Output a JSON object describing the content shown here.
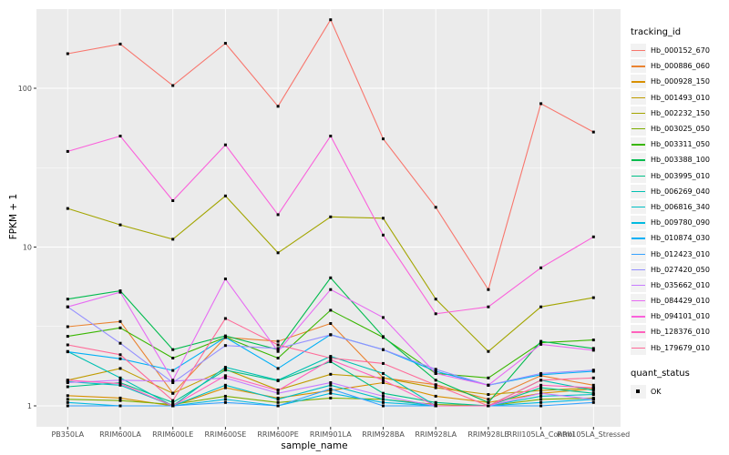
{
  "chart_data": {
    "type": "line",
    "title": "",
    "xlabel": "sample_name",
    "ylabel": "FPKM + 1",
    "y_scale": "log10",
    "y_ticks": [
      1,
      10,
      100
    ],
    "y_minor_ticks": [
      3.162,
      31.62,
      316.2
    ],
    "ylim_log": [
      0.87,
      316
    ],
    "grid": "on",
    "panel_bg": "#ebebeb",
    "grid_color": "#ffffff",
    "tick_text_color": "#4d4d4d",
    "point_color": "#000000",
    "legend_position": "right",
    "legend_title": "tracking_id",
    "quant_legend_title": "quant_status",
    "quant_legend_value": "OK",
    "categories": [
      "PB350LA",
      "RRIM600LA",
      "RRIM600LE",
      "RRIM600SE",
      "RRIM600PE",
      "RRIM901LA",
      "RRIM928BA",
      "RRIM928LA",
      "RRIM928LE",
      "RRII105LA_Control",
      "RRII105LA_Stressed"
    ],
    "series": [
      {
        "name": "Hb_000152_670",
        "color": "#F8766D",
        "values": [
          165,
          190,
          104,
          192,
          77,
          270,
          48,
          17.8,
          5.4,
          80,
          53
        ]
      },
      {
        "name": "Hb_000886_060",
        "color": "#EA8331",
        "values": [
          3.15,
          3.4,
          1.2,
          2.7,
          2.55,
          3.3,
          1.5,
          1.36,
          1.1,
          1.55,
          1.35
        ]
      },
      {
        "name": "Hb_000928_150",
        "color": "#D89000",
        "values": [
          1.16,
          1.12,
          1.0,
          1.3,
          1.12,
          1.25,
          1.4,
          1.15,
          1.05,
          1.2,
          1.28
        ]
      },
      {
        "name": "Hb_001493_010",
        "color": "#C09B00",
        "values": [
          1.45,
          1.72,
          1.2,
          1.7,
          1.26,
          1.58,
          1.5,
          1.3,
          1.18,
          1.25,
          1.3
        ]
      },
      {
        "name": "Hb_002232_150",
        "color": "#A3A500",
        "values": [
          17.5,
          13.8,
          11.2,
          21,
          9.2,
          15.5,
          15.2,
          4.7,
          2.2,
          4.2,
          4.8
        ]
      },
      {
        "name": "Hb_003025_050",
        "color": "#7CAE00",
        "values": [
          1.1,
          1.08,
          1.02,
          1.15,
          1.05,
          1.12,
          1.1,
          1.02,
          1.0,
          1.1,
          1.12
        ]
      },
      {
        "name": "Hb_003311_050",
        "color": "#39B600",
        "values": [
          2.74,
          3.1,
          2.0,
          2.7,
          2.0,
          4.0,
          2.7,
          1.6,
          1.5,
          2.5,
          2.6
        ]
      },
      {
        "name": "Hb_003388_100",
        "color": "#00BB4E",
        "values": [
          4.7,
          5.3,
          2.26,
          2.76,
          2.26,
          6.4,
          2.73,
          1.45,
          1.05,
          2.55,
          2.3
        ]
      },
      {
        "name": "Hb_003995_010",
        "color": "#00C087",
        "values": [
          1.32,
          1.4,
          1.05,
          1.68,
          1.44,
          1.9,
          1.2,
          1.05,
          1.0,
          1.3,
          1.2
        ]
      },
      {
        "name": "Hb_006269_040",
        "color": "#00C0B2",
        "values": [
          2.2,
          1.5,
          1.0,
          1.75,
          1.45,
          2.05,
          1.6,
          1.0,
          1.0,
          1.45,
          1.25
        ]
      },
      {
        "name": "Hb_006816_340",
        "color": "#00BFC4",
        "values": [
          1.42,
          1.35,
          1.0,
          1.35,
          1.1,
          1.35,
          1.1,
          1.0,
          1.0,
          1.15,
          1.18
        ]
      },
      {
        "name": "Hb_009780_090",
        "color": "#00BAE0",
        "values": [
          1.05,
          1.0,
          1.0,
          1.1,
          1.0,
          1.2,
          1.05,
          1.0,
          1.0,
          1.05,
          1.1
        ]
      },
      {
        "name": "Hb_010874_030",
        "color": "#00B0F6",
        "values": [
          2.19,
          1.98,
          1.67,
          2.7,
          1.72,
          2.81,
          2.26,
          1.65,
          1.35,
          1.57,
          1.65
        ]
      },
      {
        "name": "Hb_012423_010",
        "color": "#35A2FF",
        "values": [
          1.0,
          1.0,
          1.0,
          1.05,
          1.0,
          1.28,
          1.0,
          1.0,
          1.0,
          1.0,
          1.05
        ]
      },
      {
        "name": "Hb_027420_050",
        "color": "#9590FF",
        "values": [
          4.2,
          2.48,
          1.4,
          2.4,
          2.3,
          2.8,
          2.26,
          1.7,
          1.35,
          1.6,
          1.68
        ]
      },
      {
        "name": "Hb_035662_010",
        "color": "#C77CFF",
        "values": [
          1.4,
          1.45,
          1.43,
          1.5,
          1.2,
          1.4,
          1.15,
          1.0,
          1.0,
          1.2,
          1.1
        ]
      },
      {
        "name": "Hb_084429_010",
        "color": "#E76BF3",
        "values": [
          4.2,
          5.2,
          1.45,
          6.3,
          2.2,
          5.4,
          3.6,
          1.6,
          1.35,
          2.44,
          2.24
        ]
      },
      {
        "name": "Hb_094101_010",
        "color": "#FA62DB",
        "values": [
          40,
          50,
          19.6,
          44,
          16,
          50,
          11.9,
          3.8,
          4.2,
          7.4,
          11.6
        ]
      },
      {
        "name": "Hb_128376_010",
        "color": "#FF62BC",
        "values": [
          1.45,
          1.38,
          1.0,
          1.55,
          1.25,
          1.95,
          1.45,
          1.0,
          1.0,
          1.35,
          1.3
        ]
      },
      {
        "name": "Hb_179679_010",
        "color": "#FF6A98",
        "values": [
          2.42,
          2.1,
          1.08,
          3.55,
          2.42,
          2.0,
          1.85,
          1.35,
          1.0,
          1.45,
          1.5
        ]
      }
    ]
  }
}
